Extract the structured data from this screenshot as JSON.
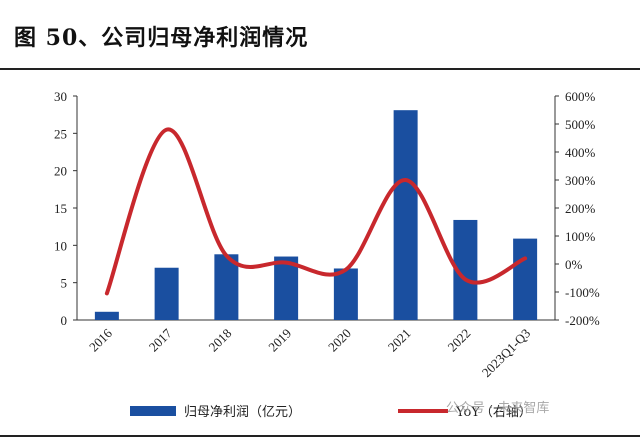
{
  "title": "图 50、公司归母净利润情况",
  "watermark": "公众号 · 未来智库",
  "colors": {
    "bar": "#1a4fa0",
    "line": "#c8282d",
    "axis": "#333333"
  },
  "chart_data": {
    "type": "bar+line",
    "categories": [
      "2016",
      "2017",
      "2018",
      "2019",
      "2020",
      "2021",
      "2022",
      "2023Q1-Q3"
    ],
    "series": [
      {
        "name": "归母净利润（亿元）",
        "type": "bar",
        "axis": "left",
        "values": [
          1.1,
          7.0,
          8.8,
          8.5,
          6.9,
          28.1,
          13.4,
          10.9
        ]
      },
      {
        "name": "YoY（右轴）",
        "type": "line",
        "axis": "right",
        "smooth": true,
        "values": [
          -105,
          480,
          30,
          5,
          -20,
          300,
          -55,
          20
        ]
      }
    ],
    "y_left": {
      "min": 0,
      "max": 30,
      "ticks": [
        "0",
        "5",
        "10",
        "15",
        "20",
        "25",
        "30"
      ]
    },
    "y_right": {
      "min": -200,
      "max": 600,
      "ticks": [
        "-200%",
        "-100%",
        "0%",
        "100%",
        "200%",
        "300%",
        "400%",
        "500%",
        "600%"
      ]
    },
    "grid": false,
    "legend_position": "bottom"
  }
}
